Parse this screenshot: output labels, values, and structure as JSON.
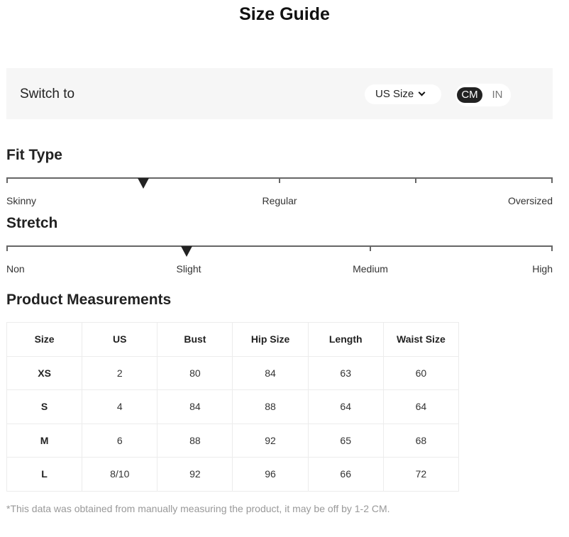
{
  "title": "Size Guide",
  "switch": {
    "label": "Switch to",
    "size_select": "US Size",
    "units": [
      "CM",
      "IN"
    ],
    "active_unit": "CM"
  },
  "fit": {
    "heading": "Fit Type",
    "labels": [
      "Skinny",
      "Regular",
      "Oversized"
    ],
    "level": 0.25
  },
  "stretch": {
    "heading": "Stretch",
    "labels": [
      "Non",
      "Slight",
      "Medium",
      "High"
    ],
    "level": 0.33
  },
  "measurements": {
    "heading": "Product Measurements",
    "columns": [
      "Size",
      "US",
      "Bust",
      "Hip Size",
      "Length",
      "Waist Size"
    ],
    "rows": [
      [
        "XS",
        "2",
        "80",
        "84",
        "63",
        "60"
      ],
      [
        "S",
        "4",
        "84",
        "88",
        "64",
        "64"
      ],
      [
        "M",
        "6",
        "88",
        "92",
        "65",
        "68"
      ],
      [
        "L",
        "8/10",
        "92",
        "96",
        "66",
        "72"
      ]
    ]
  },
  "note": "*This data was obtained from manually measuring the product, it may be off by 1-2 CM."
}
